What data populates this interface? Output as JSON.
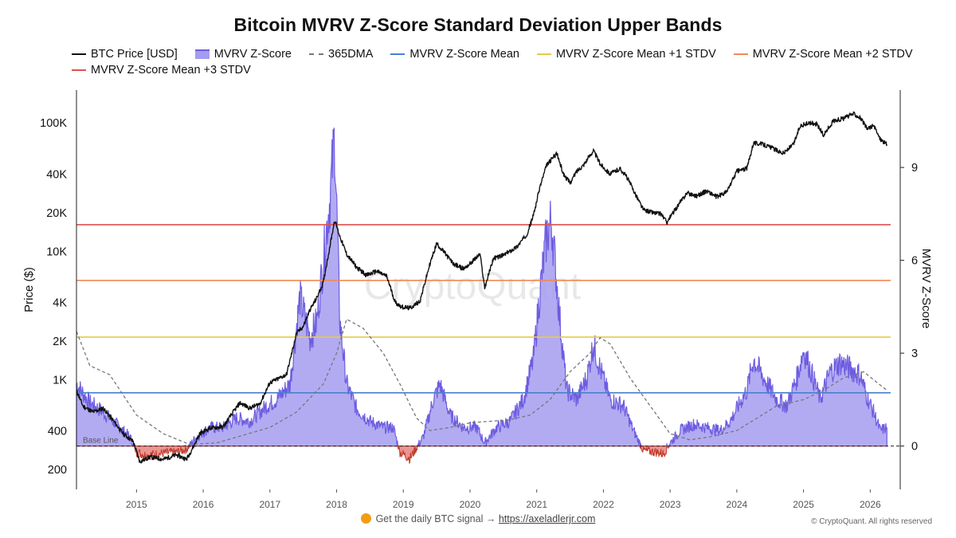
{
  "chart_data": {
    "type": "line",
    "title": "Bitcoin MVRV Z-Score Standard Deviation Upper Bands",
    "ylabel_left": "Price ($)",
    "ylabel_right": "MVRV Z-Score",
    "left_axis": {
      "scale": "log",
      "range": [
        140,
        180000
      ],
      "ticks": [
        200,
        400,
        1000,
        2000,
        4000,
        10000,
        20000,
        40000,
        100000
      ],
      "tick_labels": [
        "200",
        "400",
        "1K",
        "2K",
        "4K",
        "10K",
        "20K",
        "40K",
        "100K"
      ]
    },
    "right_axis": {
      "scale": "linear",
      "range": [
        -1.4,
        11.5
      ],
      "ticks": [
        0,
        3,
        6,
        9
      ],
      "tick_labels": [
        "0",
        "3",
        "6",
        "9"
      ]
    },
    "x_axis": {
      "range": [
        2014.1,
        2026.45
      ],
      "ticks": [
        2015,
        2016,
        2017,
        2018,
        2019,
        2020,
        2021,
        2022,
        2023,
        2024,
        2025,
        2026
      ],
      "tick_labels": [
        "2015",
        "2016",
        "2017",
        "2018",
        "2019",
        "2020",
        "2021",
        "2022",
        "2023",
        "2024",
        "2025",
        "2026"
      ]
    },
    "legend": [
      {
        "name": "BTC Price [USD]",
        "color": "#111111",
        "style": "solid"
      },
      {
        "name": "MVRV Z-Score",
        "color": "#6d5ce0",
        "style": "area"
      },
      {
        "name": "365DMA",
        "color": "#777777",
        "style": "dashed"
      },
      {
        "name": "MVRV Z-Score Mean",
        "color": "#4a7fd0",
        "style": "solid"
      },
      {
        "name": "MVRV Z-Score Mean +1 STDV",
        "color": "#e7c94a",
        "style": "solid"
      },
      {
        "name": "MVRV Z-Score Mean +2 STDV",
        "color": "#f08a55",
        "style": "solid"
      },
      {
        "name": "MVRV Z-Score Mean +3 STDV",
        "color": "#e0504c",
        "style": "solid"
      }
    ],
    "bands": {
      "mean": 1.72,
      "plus1": 3.52,
      "plus2": 5.35,
      "plus3": 7.15
    },
    "baseline": {
      "value": 0,
      "label": "Base Line"
    },
    "series": [
      {
        "name": "BTC Price [USD]",
        "x": [
          2014.1,
          2014.2,
          2014.35,
          2014.5,
          2014.65,
          2014.8,
          2014.95,
          2015.05,
          2015.2,
          2015.4,
          2015.6,
          2015.75,
          2015.85,
          2015.95,
          2016.1,
          2016.3,
          2016.45,
          2016.55,
          2016.7,
          2016.85,
          2017.0,
          2017.1,
          2017.25,
          2017.4,
          2017.5,
          2017.6,
          2017.7,
          2017.8,
          2017.9,
          2017.97,
          2018.05,
          2018.15,
          2018.3,
          2018.45,
          2018.6,
          2018.75,
          2018.88,
          2018.97,
          2019.1,
          2019.25,
          2019.4,
          2019.5,
          2019.6,
          2019.75,
          2019.9,
          2020.0,
          2020.15,
          2020.22,
          2020.35,
          2020.5,
          2020.7,
          2020.85,
          2020.95,
          2021.05,
          2021.15,
          2021.3,
          2021.4,
          2021.5,
          2021.6,
          2021.7,
          2021.85,
          2021.95,
          2022.1,
          2022.25,
          2022.35,
          2022.45,
          2022.6,
          2022.75,
          2022.87,
          2022.95,
          2023.1,
          2023.25,
          2023.4,
          2023.55,
          2023.7,
          2023.85,
          2024.0,
          2024.15,
          2024.25,
          2024.4,
          2024.55,
          2024.7,
          2024.85,
          2024.95,
          2025.1,
          2025.2,
          2025.3,
          2025.45,
          2025.6,
          2025.75,
          2025.85,
          2025.95,
          2026.05,
          2026.15,
          2026.25
        ],
        "y": [
          820,
          620,
          560,
          600,
          480,
          380,
          330,
          230,
          250,
          240,
          260,
          240,
          300,
          380,
          420,
          430,
          560,
          660,
          600,
          650,
          950,
          1000,
          1100,
          2300,
          2600,
          3500,
          4300,
          5700,
          11000,
          17500,
          13000,
          9500,
          7500,
          6500,
          7000,
          6400,
          4000,
          3700,
          3600,
          4100,
          8000,
          11500,
          10000,
          8000,
          7300,
          8000,
          9500,
          5200,
          8800,
          9300,
          10800,
          13500,
          19000,
          32000,
          47000,
          58000,
          40000,
          34000,
          42000,
          47000,
          61000,
          48000,
          40000,
          44000,
          38000,
          30000,
          21000,
          20000,
          19500,
          16800,
          22000,
          28500,
          27000,
          29500,
          26500,
          29000,
          42000,
          44000,
          70000,
          68000,
          63000,
          58000,
          68000,
          95000,
          100000,
          98000,
          80000,
          104000,
          108000,
          118000,
          110000,
          90000,
          95000,
          75000,
          68000
        ]
      },
      {
        "name": "MVRV Z-Score",
        "x": [
          2014.1,
          2014.3,
          2014.5,
          2014.7,
          2014.9,
          2015.0,
          2015.15,
          2015.35,
          2015.6,
          2015.75,
          2015.9,
          2016.1,
          2016.3,
          2016.5,
          2016.7,
          2016.95,
          2017.1,
          2017.3,
          2017.45,
          2017.6,
          2017.7,
          2017.8,
          2017.9,
          2017.97,
          2018.05,
          2018.15,
          2018.3,
          2018.5,
          2018.7,
          2018.85,
          2018.95,
          2019.1,
          2019.3,
          2019.45,
          2019.55,
          2019.7,
          2019.9,
          2020.1,
          2020.22,
          2020.4,
          2020.6,
          2020.8,
          2020.95,
          2021.05,
          2021.15,
          2021.22,
          2021.35,
          2021.45,
          2021.6,
          2021.75,
          2021.85,
          2021.95,
          2022.1,
          2022.3,
          2022.45,
          2022.6,
          2022.8,
          2022.9,
          2023.0,
          2023.15,
          2023.35,
          2023.55,
          2023.75,
          2023.9,
          2024.0,
          2024.15,
          2024.25,
          2024.4,
          2024.6,
          2024.75,
          2024.9,
          2025.0,
          2025.1,
          2025.25,
          2025.4,
          2025.55,
          2025.7,
          2025.85,
          2025.95,
          2026.05,
          2026.15,
          2026.25
        ],
        "y": [
          2.0,
          1.4,
          1.1,
          0.7,
          0.3,
          -0.2,
          -0.3,
          -0.25,
          -0.2,
          -0.1,
          0.3,
          0.6,
          0.6,
          0.9,
          0.8,
          1.3,
          1.5,
          2.0,
          4.8,
          3.5,
          4.0,
          6.0,
          8.0,
          10.0,
          4.0,
          2.0,
          1.2,
          0.8,
          0.6,
          0.6,
          -0.2,
          -0.4,
          0.3,
          1.5,
          2.0,
          1.0,
          0.6,
          0.6,
          0.1,
          0.6,
          0.8,
          1.5,
          2.8,
          5.0,
          6.8,
          7.3,
          4.0,
          1.8,
          1.5,
          2.2,
          3.3,
          2.5,
          1.5,
          1.3,
          0.5,
          -0.15,
          -0.2,
          -0.25,
          0.1,
          0.5,
          0.7,
          0.6,
          0.5,
          0.8,
          1.2,
          1.8,
          2.8,
          2.2,
          1.5,
          1.3,
          2.2,
          3.1,
          2.5,
          1.5,
          2.4,
          2.7,
          2.5,
          2.3,
          1.6,
          1.1,
          0.5,
          0.6
        ]
      },
      {
        "name": "365DMA",
        "x": [
          2014.1,
          2014.3,
          2014.6,
          2015.0,
          2015.4,
          2015.8,
          2016.2,
          2016.6,
          2017.0,
          2017.4,
          2017.8,
          2018.0,
          2018.15,
          2018.4,
          2018.7,
          2018.95,
          2019.2,
          2019.4,
          2019.7,
          2020.0,
          2020.3,
          2020.6,
          2020.9,
          2021.2,
          2021.5,
          2021.8,
          2021.95,
          2022.1,
          2022.4,
          2022.7,
          2023.0,
          2023.3,
          2023.6,
          2024.0,
          2024.3,
          2024.6,
          2025.0,
          2025.3,
          2025.6,
          2025.9,
          2026.25
        ],
        "y": [
          3.7,
          2.6,
          2.3,
          1.0,
          0.4,
          0.05,
          0.1,
          0.35,
          0.6,
          1.1,
          2.0,
          3.0,
          4.1,
          3.8,
          3.0,
          2.0,
          0.9,
          0.5,
          0.6,
          0.75,
          0.8,
          0.85,
          1.0,
          1.5,
          2.4,
          3.0,
          3.5,
          3.3,
          2.2,
          1.3,
          0.4,
          0.2,
          0.3,
          0.5,
          0.9,
          1.3,
          1.5,
          1.8,
          2.2,
          2.4,
          1.8
        ]
      }
    ]
  },
  "footer": {
    "signal_text": "Get the daily BTC signal →",
    "signal_link": "https://axeladlerjr.com",
    "copyright": "© CryptoQuant. All rights reserved"
  },
  "watermark": "CryptoQuant"
}
